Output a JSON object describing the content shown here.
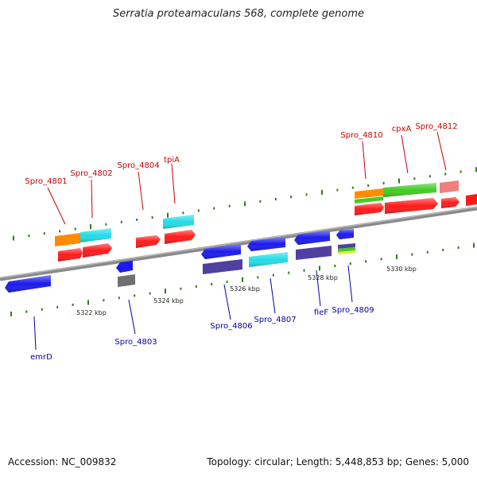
{
  "header": {
    "title": "Serratia proteamaculans 568, complete genome"
  },
  "footer": {
    "accession_label": "Accession:",
    "accession": "NC_009832",
    "topology_label": "Topology:",
    "topology": "circular",
    "length_label": "Length:",
    "length": "5,448,853 bp",
    "genes_label": "Genes:",
    "genes": "5,000"
  },
  "colors": {
    "backbone": "#8a8a8a",
    "tick": "#2e7d1e",
    "label_top": "#cc0000",
    "label_bottom": "#0000aa",
    "red": "#ff1a1a",
    "orange": "#ff8c00",
    "cyan": "#22dde8",
    "blue": "#1a1aee",
    "slate": "#5040a0",
    "gray": "#707070",
    "green": "#44cc22",
    "pink": "#f08080"
  },
  "scale_labels": [
    "5322 kbp",
    "5324 kbp",
    "5326 kbp",
    "5328 kbp",
    "5330 kbp"
  ],
  "gene_labels_top": [
    "Spro_4801",
    "Spro_4802",
    "Spro_4804",
    "tpiA",
    "Spro_4810",
    "cpxA",
    "Spro_4812"
  ],
  "gene_labels_bottom": [
    "emrD",
    "Spro_4803",
    "Spro_4806",
    "Spro_4807",
    "fieF",
    "Spro_4809"
  ]
}
